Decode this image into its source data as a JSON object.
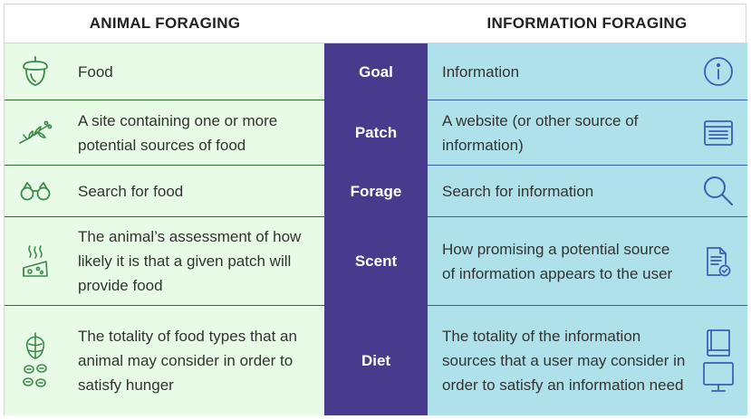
{
  "headers": {
    "animal": "ANIMAL FORAGING",
    "information": "INFORMATION FORAGING"
  },
  "rows": [
    {
      "term": "Goal",
      "animal": "Food",
      "information": "Information",
      "animal_icon": "acorn-icon",
      "info_icon": "info-icon"
    },
    {
      "term": "Patch",
      "animal": "A site containing one or more potential sources of food",
      "information": "A website (or other source of information)",
      "animal_icon": "branch-icon",
      "info_icon": "browser-window-icon"
    },
    {
      "term": "Forage",
      "animal": "Search for food",
      "information": "Search for information",
      "animal_icon": "binoculars-icon",
      "info_icon": "magnifier-icon"
    },
    {
      "term": "Scent",
      "animal": "The animal’s assessment of how likely it is that a given patch will provide food",
      "information": "How promising a potential source of information appears to the user",
      "animal_icon": "smelly-cheese-icon",
      "info_icon": "checked-document-icon"
    },
    {
      "term": "Diet",
      "animal": "The totality of food types that an animal may consider in order to satisfy hunger",
      "information": "The totality of the information sources that a user may consider in order to satisfy an information need",
      "animal_icon": "hops-and-nuts-icon",
      "info_icon": "book-and-monitor-icon"
    }
  ],
  "colors": {
    "animal_bg": "#e8fbe6",
    "term_bg": "#483b8e",
    "info_bg": "#aee1ea",
    "animal_icon": "#3d8a4a",
    "info_icon": "#3e5bb5"
  }
}
